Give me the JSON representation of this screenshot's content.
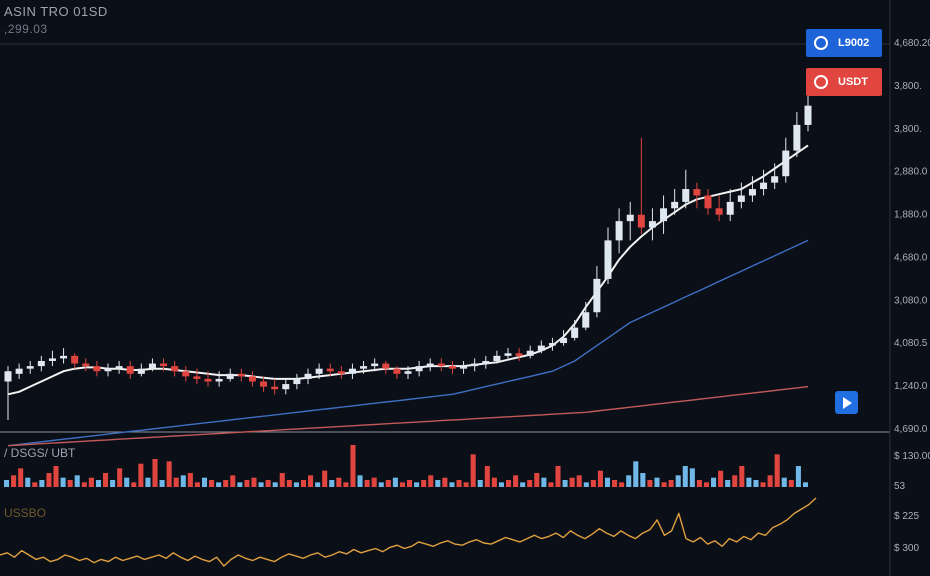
{
  "header": {
    "symbol": "ASIN TRO 01SD",
    "subtitle": ",299.03"
  },
  "tags": {
    "blue_label": "L9002",
    "red_label": "USDT"
  },
  "colors": {
    "background": "#0b0f17",
    "up": "#dfe8f1",
    "down": "#e0453f",
    "ma_fast": "#f2f2f2",
    "ma_mid": "#3e6fc4",
    "ma_slow": "#c05a5a",
    "vol_up": "#6fb8e8",
    "vol_down": "#e0453f",
    "oscillator": "#e0a040"
  },
  "icons": [
    "play-icon",
    "coin-icon"
  ],
  "chart_data": [
    {
      "type": "candlestick",
      "title": "",
      "price_axis_labels": [
        "4,680.20",
        "3,800.",
        "3,800.",
        "2,880.0",
        "1,880.0",
        "4,680.0",
        "3,080.0",
        "4,080.5",
        "1,240.0",
        "4,690.0"
      ],
      "candles": {
        "open": [
          50,
          56,
          60,
          62,
          66,
          68,
          70,
          64,
          62,
          58,
          60,
          62,
          56,
          60,
          64,
          62,
          58,
          54,
          52,
          50,
          52,
          56,
          54,
          50,
          46,
          44,
          48,
          52,
          56,
          60,
          58,
          56,
          60,
          62,
          64,
          60,
          56,
          58,
          62,
          64,
          62,
          60,
          62,
          64,
          66,
          70,
          72,
          70,
          74,
          78,
          80,
          84,
          92,
          104,
          130,
          160,
          175,
          180,
          170,
          175,
          185,
          190,
          200,
          195,
          185,
          180,
          190,
          195,
          200,
          205,
          210,
          230,
          250
        ],
        "close": [
          58,
          60,
          62,
          66,
          68,
          70,
          64,
          62,
          58,
          60,
          62,
          56,
          60,
          64,
          62,
          58,
          54,
          52,
          50,
          52,
          56,
          54,
          50,
          46,
          44,
          48,
          52,
          56,
          60,
          58,
          56,
          60,
          62,
          64,
          60,
          56,
          58,
          62,
          64,
          62,
          60,
          62,
          64,
          66,
          70,
          72,
          70,
          74,
          78,
          80,
          84,
          92,
          104,
          130,
          160,
          175,
          180,
          170,
          175,
          185,
          190,
          200,
          195,
          185,
          180,
          190,
          195,
          200,
          205,
          210,
          230,
          250,
          265
        ],
        "high": [
          62,
          64,
          66,
          70,
          74,
          76,
          72,
          68,
          66,
          64,
          66,
          66,
          64,
          68,
          68,
          66,
          62,
          60,
          58,
          58,
          60,
          60,
          58,
          54,
          52,
          52,
          56,
          60,
          64,
          64,
          62,
          64,
          66,
          68,
          66,
          62,
          62,
          66,
          68,
          68,
          66,
          66,
          68,
          70,
          74,
          76,
          76,
          78,
          82,
          84,
          90,
          98,
          112,
          140,
          170,
          185,
          190,
          240,
          185,
          195,
          200,
          215,
          205,
          200,
          195,
          200,
          205,
          210,
          215,
          220,
          240,
          260,
          285
        ],
        "low": [
          20,
          52,
          56,
          58,
          62,
          64,
          60,
          58,
          54,
          54,
          56,
          52,
          54,
          58,
          58,
          54,
          50,
          48,
          46,
          46,
          50,
          50,
          46,
          42,
          40,
          40,
          44,
          48,
          52,
          54,
          52,
          52,
          56,
          58,
          56,
          52,
          52,
          54,
          58,
          58,
          56,
          56,
          58,
          60,
          64,
          68,
          66,
          68,
          72,
          74,
          78,
          82,
          90,
          100,
          126,
          150,
          160,
          165,
          160,
          165,
          180,
          185,
          185,
          180,
          175,
          175,
          185,
          190,
          195,
          200,
          205,
          225,
          245
        ]
      },
      "moving_averages": {
        "fast": [
          40,
          42,
          46,
          50,
          54,
          58,
          60,
          61,
          61,
          60,
          60,
          59,
          59,
          60,
          60,
          59,
          58,
          57,
          56,
          55,
          55,
          55,
          54,
          53,
          52,
          52,
          52,
          53,
          54,
          55,
          56,
          57,
          58,
          59,
          60,
          60,
          60,
          61,
          62,
          62,
          62,
          62,
          63,
          64,
          65,
          67,
          69,
          71,
          74,
          78,
          85,
          95,
          108,
          120,
          132,
          145,
          155,
          163,
          170,
          176,
          182,
          188,
          192,
          194,
          196,
          198,
          200,
          205,
          210,
          216,
          222,
          228,
          234
        ],
        "mid": [
          0,
          1,
          2,
          3,
          4,
          5,
          6,
          7,
          8,
          9,
          10,
          11,
          12,
          13,
          14,
          15,
          16,
          17,
          18,
          19,
          20,
          21,
          22,
          23,
          24,
          25,
          26,
          27,
          28,
          29,
          30,
          31,
          32,
          33,
          34,
          35,
          36,
          37,
          38,
          39,
          40,
          42,
          44,
          46,
          48,
          50,
          52,
          54,
          56,
          58,
          62,
          66,
          72,
          78,
          84,
          90,
          96,
          100,
          104,
          108,
          112,
          116,
          120,
          124,
          128,
          132,
          136,
          140,
          144,
          148,
          152,
          156,
          160
        ],
        "slow": [
          0,
          0.5,
          1,
          1.5,
          2,
          2.5,
          3,
          3.5,
          4,
          4.5,
          5,
          5.5,
          6,
          6.5,
          7,
          7.5,
          8,
          8.5,
          9,
          9.5,
          10,
          10.5,
          11,
          11.5,
          12,
          12.5,
          13,
          13.5,
          14,
          14.5,
          15,
          15.5,
          16,
          16.5,
          17,
          17.5,
          18,
          18.5,
          19,
          19.5,
          20,
          20.5,
          21,
          21.5,
          22,
          22.5,
          23,
          23.5,
          24,
          24.5,
          25,
          25.5,
          26,
          27,
          28,
          29,
          30,
          31,
          32,
          33,
          34,
          35,
          36,
          37,
          38,
          39,
          40,
          41,
          42,
          43,
          44,
          45,
          46
        ]
      }
    },
    {
      "type": "bar",
      "title": "",
      "label": "/ DSGS/ UBT",
      "axis_labels": [
        "$ 130.00",
        "53"
      ],
      "values": [
        3,
        5,
        8,
        4,
        2,
        3,
        6,
        9,
        4,
        3,
        5,
        2,
        4,
        3,
        6,
        3,
        8,
        4,
        2,
        10,
        4,
        12,
        3,
        11,
        4,
        5,
        6,
        2,
        4,
        3,
        2,
        3,
        5,
        2,
        3,
        4,
        2,
        3,
        2,
        6,
        3,
        2,
        3,
        5,
        2,
        7,
        3,
        4,
        2,
        18,
        5,
        3,
        4,
        2,
        3,
        4,
        2,
        3,
        2,
        3,
        5,
        3,
        4,
        2,
        3,
        2,
        14,
        3,
        9,
        4,
        2,
        3,
        5,
        2,
        3,
        6,
        4,
        2,
        9,
        3,
        4,
        5,
        2,
        3,
        7,
        4,
        3,
        2,
        5,
        11,
        6,
        3,
        4,
        2,
        3,
        5,
        9,
        8,
        3,
        2,
        4,
        7,
        3,
        5,
        9,
        4,
        3,
        2,
        5,
        14,
        4,
        3,
        9,
        2
      ],
      "directions": [
        1,
        0,
        0,
        1,
        0,
        1,
        0,
        0,
        1,
        0,
        1,
        0,
        0,
        1,
        0,
        1,
        0,
        1,
        0,
        0,
        1,
        0,
        1,
        0,
        0,
        1,
        0,
        0,
        1,
        0,
        1,
        0,
        0,
        1,
        0,
        0,
        1,
        0,
        1,
        0,
        0,
        1,
        0,
        0,
        1,
        0,
        1,
        0,
        0,
        0,
        1,
        0,
        0,
        1,
        0,
        1,
        0,
        0,
        1,
        0,
        0,
        1,
        0,
        1,
        0,
        0,
        0,
        1,
        0,
        0,
        1,
        0,
        0,
        1,
        0,
        0,
        1,
        0,
        0,
        1,
        0,
        0,
        1,
        0,
        0,
        1,
        0,
        0,
        1,
        1,
        1,
        0,
        1,
        0,
        0,
        1,
        1,
        1,
        0,
        0,
        1,
        0,
        1,
        0,
        0,
        1,
        1,
        0,
        0,
        0,
        1,
        0,
        1,
        1
      ]
    },
    {
      "type": "line",
      "title": "",
      "label": "USSBO",
      "axis_labels": [
        "$ 225",
        "$ 300"
      ],
      "values": [
        40,
        42,
        38,
        44,
        40,
        36,
        38,
        34,
        36,
        40,
        38,
        35,
        37,
        33,
        36,
        34,
        38,
        35,
        37,
        39,
        36,
        38,
        40,
        37,
        42,
        38,
        35,
        39,
        36,
        34,
        38,
        30,
        36,
        40,
        37,
        35,
        38,
        36,
        34,
        38,
        41,
        39,
        37,
        40,
        42,
        38,
        40,
        43,
        41,
        45,
        42,
        44,
        46,
        43,
        47,
        49,
        46,
        48,
        52,
        50,
        48,
        51,
        53,
        50,
        49,
        52,
        54,
        51,
        50,
        53,
        56,
        54,
        52,
        55,
        58,
        55,
        57,
        60,
        56,
        62,
        58,
        55,
        59,
        64,
        60,
        57,
        62,
        58,
        55,
        60,
        63,
        72,
        58,
        62,
        78,
        55,
        52,
        56,
        50,
        53,
        48,
        55,
        52,
        57,
        54,
        60,
        58,
        65,
        68,
        72,
        78,
        82,
        86,
        92
      ]
    }
  ]
}
